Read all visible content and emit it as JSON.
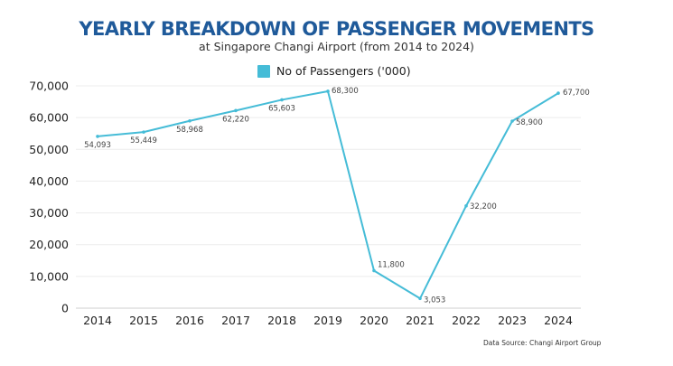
{
  "chart_data": {
    "type": "line",
    "title": "YEARLY BREAKDOWN OF PASSENGER MOVEMENTS",
    "subtitle": "at Singapore Changi Airport (from 2014 to 2024)",
    "xlabel": "",
    "ylabel": "",
    "categories": [
      "2014",
      "2015",
      "2016",
      "2017",
      "2018",
      "2019",
      "2020",
      "2021",
      "2022",
      "2023",
      "2024"
    ],
    "series": [
      {
        "name": "No of Passengers ('000)",
        "color": "#45bcd7",
        "values": [
          54093,
          55449,
          58968,
          62220,
          65603,
          68300,
          11800,
          3053,
          32200,
          58900,
          67700
        ],
        "labels": [
          "54,093",
          "55,449",
          "58,968",
          "62,220",
          "65,603",
          "68,300",
          "11,800",
          "3,053",
          "32,200",
          "58,900",
          "67,700"
        ]
      }
    ],
    "ylim": [
      0,
      70000
    ],
    "yticks": [
      0,
      10000,
      20000,
      30000,
      40000,
      50000,
      60000,
      70000
    ],
    "ytick_labels": [
      "0",
      "10,000",
      "20,000",
      "30,000",
      "40,000",
      "50,000",
      "60,000",
      "70,000"
    ],
    "grid": true,
    "legend": "top-center",
    "source": "Data Source: Changi Airport Group"
  }
}
